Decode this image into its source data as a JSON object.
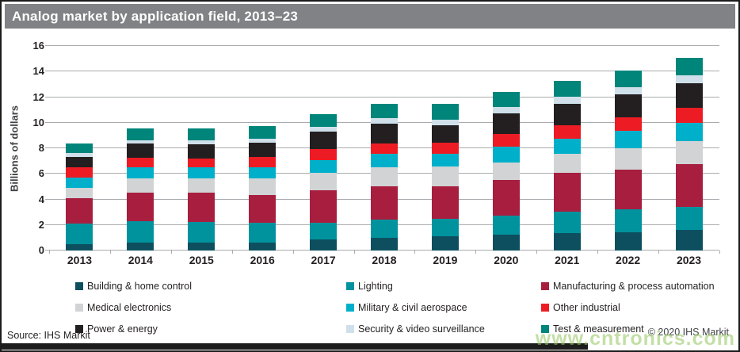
{
  "header": {
    "title": "Analog market by application field, 2013–23"
  },
  "footer": {
    "source": "Source: IHS Markit",
    "copyright": "© 2020 IHS Markit"
  },
  "watermark": {
    "text": "www.cntronics.com",
    "color": "#92c45c"
  },
  "chart_data": {
    "type": "bar",
    "stacked": true,
    "title": "Analog market by application field, 2013–23",
    "xlabel": "",
    "ylabel": "Billions of dollars",
    "ylim": [
      0,
      16
    ],
    "ytick_step": 2,
    "grid": true,
    "legend_position": "bottom",
    "categories": [
      "2013",
      "2014",
      "2015",
      "2016",
      "2017",
      "2018",
      "2019",
      "2020",
      "2021",
      "2022",
      "2023"
    ],
    "series": [
      {
        "name": "Building & home control",
        "color": "#0d4f5f",
        "values": [
          0.5,
          0.65,
          0.65,
          0.65,
          0.9,
          1.0,
          1.1,
          1.25,
          1.35,
          1.45,
          1.6
        ]
      },
      {
        "name": "Lighting",
        "color": "#00939e",
        "values": [
          1.6,
          1.65,
          1.6,
          1.5,
          1.25,
          1.45,
          1.4,
          1.5,
          1.7,
          1.75,
          1.8
        ]
      },
      {
        "name": "Manufacturing & process automation",
        "color": "#a81e3f",
        "values": [
          2.0,
          2.25,
          2.25,
          2.2,
          2.55,
          2.55,
          2.5,
          2.75,
          3.0,
          3.1,
          3.35
        ]
      },
      {
        "name": "Medical electronics",
        "color": "#d1d3d4",
        "values": [
          0.8,
          1.1,
          1.15,
          1.3,
          1.4,
          1.5,
          1.6,
          1.4,
          1.5,
          1.7,
          1.8
        ]
      },
      {
        "name": "Military & civil aerospace",
        "color": "#00b0ca",
        "values": [
          0.8,
          0.85,
          0.85,
          0.85,
          0.95,
          1.05,
          0.95,
          1.2,
          1.2,
          1.35,
          1.45
        ]
      },
      {
        "name": "Other industrial",
        "color": "#ed1c24",
        "values": [
          0.8,
          0.75,
          0.7,
          0.8,
          0.9,
          0.85,
          0.9,
          1.0,
          1.05,
          1.05,
          1.15
        ]
      },
      {
        "name": "Power & energy",
        "color": "#231f20",
        "values": [
          0.85,
          1.1,
          1.1,
          1.15,
          1.35,
          1.55,
          1.35,
          1.65,
          1.7,
          1.8,
          1.95
        ]
      },
      {
        "name": "Security & video surveillance",
        "color": "#cfe0ea",
        "values": [
          0.3,
          0.28,
          0.3,
          0.3,
          0.4,
          0.4,
          0.45,
          0.5,
          0.55,
          0.6,
          0.6
        ]
      },
      {
        "name": "Test & measurement",
        "color": "#00857a",
        "values": [
          0.75,
          0.9,
          0.95,
          1.0,
          1.0,
          1.15,
          1.2,
          1.15,
          1.2,
          1.3,
          1.35
        ]
      }
    ],
    "totals": [
      8.4,
      9.5,
      9.5,
      9.75,
      10.7,
      11.5,
      11.45,
      12.4,
      13.25,
      14.1,
      15.05
    ]
  }
}
